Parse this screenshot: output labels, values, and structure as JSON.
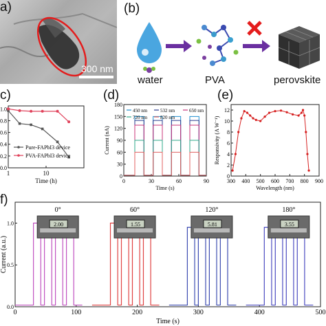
{
  "panels": {
    "a": {
      "label": "a)",
      "scalebar": "300 nm"
    },
    "b": {
      "label": "(b)",
      "items": [
        "water",
        "PVA",
        "perovskite"
      ]
    },
    "c": {
      "label": "c)"
    },
    "d": {
      "label": "(d)"
    },
    "e": {
      "label": "(e)"
    },
    "f": {
      "label": "f)"
    }
  },
  "chart_data": [
    {
      "panel": "c",
      "type": "line",
      "xlabel": "Time (h)",
      "xscale": "log",
      "x_ticks": [
        "1",
        "10"
      ],
      "y_ticks": [
        "1.0",
        "0.8",
        "0.6",
        "0.4",
        "0.2",
        "0.0"
      ],
      "ylim": [
        0,
        1.05
      ],
      "legend_position": "bottom-left",
      "series": [
        {
          "name": "Pure-FAPbI3 device",
          "color": "#555555",
          "x": [
            1,
            2,
            4,
            8,
            20,
            40
          ],
          "y": [
            0.97,
            0.75,
            0.73,
            0.66,
            0.44,
            0.18
          ]
        },
        {
          "name": "PVA-FAPbI3 device",
          "color": "#e0405a",
          "x": [
            1,
            2,
            4,
            8,
            20,
            40
          ],
          "y": [
            1.0,
            0.97,
            0.96,
            0.96,
            0.96,
            0.78
          ]
        }
      ]
    },
    {
      "panel": "d",
      "type": "line",
      "xlabel": "Time (s)",
      "ylabel": "Current (nA)",
      "xlim": [
        0,
        90
      ],
      "ylim": [
        0,
        180
      ],
      "x_ticks": [
        "0",
        "30",
        "60",
        "90"
      ],
      "y_ticks": [
        "0",
        "30",
        "60",
        "90",
        "120",
        "150",
        "180"
      ],
      "series": [
        {
          "name": "450 nm",
          "color": "#1f8fd0",
          "on_level": 150
        },
        {
          "name": "532 nm",
          "color": "#2a3a8c",
          "on_level": 140
        },
        {
          "name": "650 nm",
          "color": "#c8347a",
          "on_level": 128
        },
        {
          "name": "720 nm",
          "color": "#2eaa8a",
          "on_level": 90
        },
        {
          "name": "820 nm",
          "color": "#e06060",
          "on_level": 60
        }
      ],
      "on_periods": [
        [
          12,
          22
        ],
        [
          32,
          42
        ],
        [
          52,
          62
        ],
        [
          72,
          82
        ]
      ]
    },
    {
      "panel": "e",
      "type": "line",
      "xlabel": "Wavelength (nm)",
      "ylabel": "Responsivity (A W⁻¹)",
      "xlim": [
        300,
        900
      ],
      "ylim": [
        0,
        13
      ],
      "x_ticks": [
        "300",
        "400",
        "500",
        "600",
        "700",
        "800",
        "900"
      ],
      "y_ticks": [
        "0",
        "2",
        "4",
        "6",
        "8",
        "10",
        "12"
      ],
      "series": [
        {
          "name": "Responsivity",
          "color": "#d62020",
          "x": [
            310,
            330,
            350,
            370,
            390,
            410,
            430,
            450,
            470,
            500,
            530,
            560,
            600,
            640,
            680,
            720,
            760,
            780,
            790,
            800,
            810,
            820,
            830
          ],
          "y": [
            1.0,
            4.0,
            8.0,
            10.5,
            11.8,
            11.5,
            11.0,
            10.5,
            10.2,
            10.0,
            10.8,
            11.5,
            11.8,
            11.9,
            11.6,
            11.2,
            11.0,
            11.5,
            12.0,
            11.0,
            8.0,
            4.0,
            1.0
          ]
        }
      ]
    },
    {
      "panel": "f",
      "type": "line",
      "xlabel": "Time (s)",
      "ylabel": "Current (a.u.)",
      "xlim": [
        0,
        500
      ],
      "ylim": [
        0,
        1.25
      ],
      "x_ticks": [
        "0",
        "100",
        "200",
        "300",
        "400",
        "500"
      ],
      "y_ticks": [
        "0.0",
        "0.5",
        "1.0"
      ],
      "angles": [
        "0°",
        "60°",
        "120°",
        "180°"
      ],
      "caliper_readings": [
        "2.00",
        "1.55",
        "5.81",
        "3.55"
      ],
      "series": [
        {
          "name": "0°",
          "color": "#c050c0",
          "on_periods": [
            [
              30,
              42
            ],
            [
              48,
              60
            ],
            [
              66,
              78
            ],
            [
              84,
              96
            ]
          ],
          "level": 1.0
        },
        {
          "name": "60°",
          "color": "#e04040",
          "on_periods": [
            [
              156,
              168
            ],
            [
              174,
              186
            ],
            [
              192,
              204
            ],
            [
              210,
              222
            ]
          ],
          "level": 1.0
        },
        {
          "name": "120°",
          "color": "#3a4ab0",
          "on_periods": [
            [
              282,
              294
            ],
            [
              300,
              312
            ],
            [
              318,
              330
            ],
            [
              336,
              348
            ]
          ],
          "level": 0.95
        },
        {
          "name": "180°",
          "color": "#4a4ac0",
          "on_periods": [
            [
              408,
              420
            ],
            [
              426,
              438
            ],
            [
              444,
              456
            ],
            [
              462,
              474
            ]
          ],
          "level": 0.95
        }
      ]
    }
  ]
}
